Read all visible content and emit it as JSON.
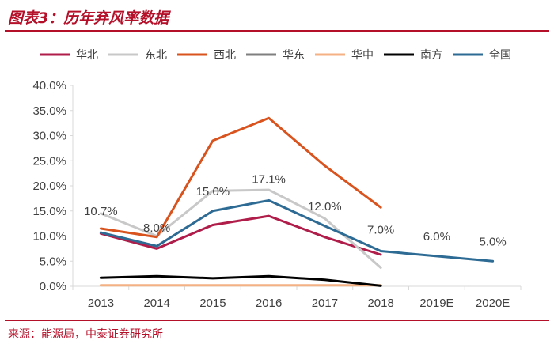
{
  "title": "图表3：历年弃风率数据",
  "source": "来源：能源局，中泰证券研究所",
  "chart_data": {
    "type": "line",
    "categories": [
      "2013",
      "2014",
      "2015",
      "2016",
      "2017",
      "2018",
      "2019E",
      "2020E"
    ],
    "ylim": [
      0,
      40
    ],
    "yticks": [
      "0.0%",
      "5.0%",
      "10.0%",
      "15.0%",
      "20.0%",
      "25.0%",
      "30.0%",
      "35.0%",
      "40.0%"
    ],
    "legend_position": "top",
    "series": [
      {
        "name": "华北",
        "color": "#b01d4a",
        "values": [
          10.5,
          7.5,
          12.2,
          14.0,
          9.8,
          6.3,
          null,
          null
        ]
      },
      {
        "name": "东北",
        "color": "#c8c8c8",
        "values": [
          14.5,
          10.0,
          19.0,
          19.2,
          13.5,
          3.7,
          null,
          null
        ]
      },
      {
        "name": "西北",
        "color": "#d9531e",
        "values": [
          11.5,
          9.8,
          29.0,
          33.5,
          24.0,
          15.7,
          null,
          null
        ]
      },
      {
        "name": "华东",
        "color": "#7f7f7f",
        "values": [
          null,
          null,
          null,
          null,
          null,
          null,
          null,
          null
        ]
      },
      {
        "name": "华中",
        "color": "#f4b183",
        "values": [
          0.2,
          0.2,
          0.2,
          0.2,
          0.2,
          0.2,
          null,
          null
        ]
      },
      {
        "name": "南方",
        "color": "#000000",
        "values": [
          1.7,
          2.0,
          1.6,
          2.0,
          1.3,
          0.1,
          null,
          null
        ]
      },
      {
        "name": "全国",
        "color": "#2e6b94",
        "values": [
          10.7,
          8.0,
          15.0,
          17.1,
          12.0,
          7.0,
          6.0,
          5.0
        ]
      }
    ],
    "data_labels": [
      "10.7%",
      "8.0%",
      "15.0%",
      "17.1%",
      "12.0%",
      "7.0%",
      "6.0%",
      "5.0%"
    ]
  }
}
